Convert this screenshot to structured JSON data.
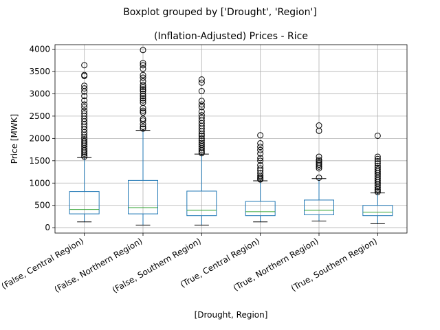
{
  "chart_data": {
    "type": "boxplot",
    "suptitle": "Boxplot grouped by ['Drought', 'Region']",
    "title": "(Inflation-Adjusted) Prices - Rice",
    "xlabel": "[Drought, Region]",
    "ylabel": "Price [MWK]",
    "ylim": [
      -120,
      4100
    ],
    "yticks": [
      0,
      500,
      1000,
      1500,
      2000,
      2500,
      3000,
      3500,
      4000
    ],
    "ytick_labels": [
      "0",
      "500",
      "1000",
      "1500",
      "2000",
      "2500",
      "3000",
      "3500",
      "4000"
    ],
    "grid": true,
    "colors": {
      "box": "#1f77b4",
      "median": "#2ca02c",
      "grid": "#b0b0b0",
      "outlier": "#000000"
    },
    "categories": [
      "(False, Central Region)",
      "(False, Northern Region)",
      "(False, Southern Region)",
      "(True, Central Region)",
      "(True, Northern Region)",
      "(True, Southern Region)"
    ],
    "boxes": [
      {
        "whislo": 130,
        "q1": 310,
        "med": 410,
        "q3": 810,
        "whishi": 1570,
        "fliers": [
          1590,
          1620,
          1660,
          1700,
          1740,
          1780,
          1820,
          1860,
          1900,
          1940,
          1980,
          2020,
          2080,
          2140,
          2200,
          2260,
          2320,
          2380,
          2440,
          2500,
          2560,
          2620,
          2700,
          2760,
          2850,
          2950,
          3050,
          3120,
          3180,
          3400,
          3420,
          3640
        ]
      },
      {
        "whislo": 60,
        "q1": 310,
        "med": 450,
        "q3": 1060,
        "whishi": 2180,
        "fliers": [
          2220,
          2260,
          2320,
          2400,
          2440,
          2580,
          2620,
          2680,
          2800,
          2850,
          2900,
          2950,
          3000,
          3060,
          3100,
          3150,
          3200,
          3280,
          3360,
          3420,
          3560,
          3640,
          3690,
          3980
        ]
      },
      {
        "whislo": 60,
        "q1": 270,
        "med": 390,
        "q3": 820,
        "whishi": 1650,
        "fliers": [
          1670,
          1700,
          1740,
          1780,
          1820,
          1860,
          1900,
          1950,
          2000,
          2060,
          2100,
          2160,
          2220,
          2280,
          2340,
          2400,
          2460,
          2520,
          2600,
          2700,
          2760,
          2840,
          3060,
          3250,
          3320
        ]
      },
      {
        "whislo": 130,
        "q1": 270,
        "med": 360,
        "q3": 590,
        "whishi": 1050,
        "fliers": [
          1080,
          1100,
          1130,
          1160,
          1220,
          1280,
          1330,
          1400,
          1500,
          1560,
          1660,
          1740,
          1810,
          1890,
          2070
        ]
      },
      {
        "whislo": 150,
        "q1": 290,
        "med": 390,
        "q3": 620,
        "whishi": 1100,
        "fliers": [
          1120,
          1330,
          1370,
          1410,
          1450,
          1490,
          1520,
          1590,
          2170,
          2290
        ]
      },
      {
        "whislo": 90,
        "q1": 270,
        "med": 350,
        "q3": 500,
        "whishi": 780,
        "fliers": [
          800,
          830,
          860,
          900,
          940,
          980,
          1020,
          1060,
          1100,
          1140,
          1180,
          1220,
          1260,
          1300,
          1340,
          1380,
          1440,
          1490,
          1540,
          1590,
          2060
        ]
      }
    ]
  }
}
